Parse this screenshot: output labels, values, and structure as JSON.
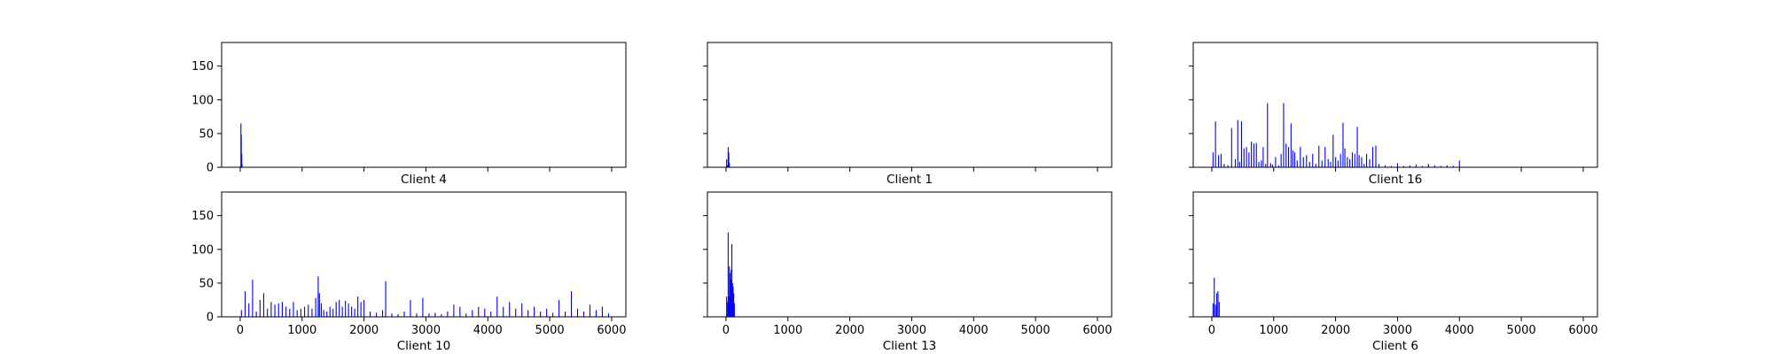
{
  "chart_data": [
    {
      "type": "bar",
      "title": "Client 4",
      "xlim": [
        -300,
        6230
      ],
      "ylim": [
        0,
        185
      ],
      "xticks": [
        0,
        1000,
        2000,
        3000,
        4000,
        5000,
        6000
      ],
      "yticks": [
        0,
        50,
        100,
        150
      ],
      "show_xtick_labels": false,
      "show_ytick_labels": true,
      "color": "#0000ff",
      "x": [
        5,
        12,
        18,
        25,
        30
      ],
      "values": [
        2,
        65,
        48,
        20,
        5
      ]
    },
    {
      "type": "bar",
      "title": "Client 1",
      "xlim": [
        -300,
        6230
      ],
      "ylim": [
        0,
        185
      ],
      "xticks": [
        0,
        1000,
        2000,
        3000,
        4000,
        5000,
        6000
      ],
      "yticks": [
        0,
        50,
        100,
        150
      ],
      "show_xtick_labels": false,
      "show_ytick_labels": false,
      "color": "#0000ff",
      "x": [
        10,
        20,
        35,
        45,
        55
      ],
      "values": [
        12,
        3,
        30,
        22,
        6
      ]
    },
    {
      "type": "bar",
      "title": "Client 16",
      "xlim": [
        -300,
        6230
      ],
      "ylim": [
        0,
        185
      ],
      "xticks": [
        0,
        1000,
        2000,
        3000,
        4000,
        5000,
        6000
      ],
      "yticks": [
        0,
        50,
        100,
        150
      ],
      "show_xtick_labels": false,
      "show_ytick_labels": false,
      "color": "#0000ff",
      "x": [
        20,
        60,
        110,
        150,
        200,
        260,
        320,
        380,
        420,
        450,
        480,
        520,
        560,
        600,
        640,
        680,
        720,
        760,
        800,
        830,
        870,
        900,
        950,
        980,
        1030,
        1080,
        1120,
        1160,
        1200,
        1240,
        1280,
        1310,
        1340,
        1380,
        1430,
        1480,
        1530,
        1580,
        1630,
        1680,
        1730,
        1780,
        1830,
        1880,
        1920,
        1960,
        2000,
        2040,
        2080,
        2120,
        2150,
        2190,
        2230,
        2270,
        2310,
        2350,
        2380,
        2420,
        2460,
        2500,
        2550,
        2600,
        2650,
        2700,
        2800,
        2900,
        3000,
        3100,
        3200,
        3300,
        3400,
        3500,
        3600,
        3700,
        3800,
        3900,
        4000
      ],
      "values": [
        22,
        68,
        18,
        20,
        5,
        3,
        58,
        12,
        70,
        8,
        68,
        28,
        30,
        22,
        38,
        35,
        36,
        8,
        10,
        30,
        5,
        95,
        6,
        4,
        15,
        3,
        20,
        95,
        35,
        30,
        65,
        25,
        22,
        10,
        30,
        15,
        18,
        8,
        20,
        5,
        32,
        10,
        30,
        12,
        8,
        48,
        15,
        10,
        20,
        66,
        28,
        15,
        12,
        22,
        20,
        60,
        18,
        15,
        5,
        20,
        12,
        30,
        32,
        5,
        3,
        2,
        6,
        2,
        3,
        4,
        2,
        5,
        3,
        2,
        3,
        2,
        10
      ]
    },
    {
      "type": "bar",
      "title": "Client 10",
      "xlim": [
        -300,
        6230
      ],
      "ylim": [
        0,
        185
      ],
      "xticks": [
        0,
        1000,
        2000,
        3000,
        4000,
        5000,
        6000
      ],
      "yticks": [
        0,
        50,
        100,
        150
      ],
      "show_xtick_labels": true,
      "show_ytick_labels": true,
      "color": "#0000ff",
      "x": [
        20,
        80,
        140,
        200,
        260,
        320,
        380,
        440,
        500,
        560,
        620,
        680,
        740,
        800,
        860,
        920,
        980,
        1040,
        1100,
        1160,
        1220,
        1260,
        1280,
        1310,
        1350,
        1400,
        1450,
        1500,
        1550,
        1600,
        1650,
        1700,
        1750,
        1800,
        1850,
        1900,
        1950,
        2000,
        2100,
        2200,
        2300,
        2350,
        2450,
        2550,
        2650,
        2750,
        2850,
        2950,
        3050,
        3150,
        3250,
        3350,
        3450,
        3550,
        3650,
        3750,
        3850,
        3950,
        4050,
        4150,
        4250,
        4350,
        4450,
        4550,
        4650,
        4750,
        4850,
        4950,
        5050,
        5150,
        5250,
        5350,
        5450,
        5550,
        5650,
        5750,
        5850,
        5950
      ],
      "values": [
        10,
        38,
        20,
        55,
        8,
        25,
        35,
        12,
        22,
        18,
        20,
        22,
        15,
        12,
        22,
        10,
        12,
        15,
        18,
        12,
        28,
        60,
        35,
        20,
        10,
        8,
        15,
        12,
        22,
        25,
        15,
        24,
        20,
        15,
        12,
        30,
        22,
        25,
        8,
        6,
        10,
        53,
        5,
        4,
        8,
        25,
        5,
        28,
        5,
        6,
        4,
        8,
        18,
        15,
        5,
        10,
        15,
        12,
        8,
        30,
        15,
        22,
        12,
        20,
        10,
        15,
        8,
        12,
        6,
        25,
        8,
        38,
        12,
        8,
        18,
        10,
        15,
        5
      ]
    },
    {
      "type": "bar",
      "title": "Client 13",
      "xlim": [
        -300,
        6230
      ],
      "ylim": [
        0,
        185
      ],
      "xticks": [
        0,
        1000,
        2000,
        3000,
        4000,
        5000,
        6000
      ],
      "yticks": [
        0,
        50,
        100,
        150
      ],
      "show_xtick_labels": true,
      "show_ytick_labels": false,
      "color": "#0000ff",
      "x": [
        10,
        25,
        35,
        45,
        55,
        65,
        75,
        85,
        95,
        105,
        115,
        125,
        135
      ],
      "values": [
        30,
        22,
        125,
        30,
        75,
        65,
        55,
        70,
        108,
        50,
        45,
        35,
        20
      ]
    },
    {
      "type": "bar",
      "title": "Client 6",
      "xlim": [
        -300,
        6230
      ],
      "ylim": [
        0,
        185
      ],
      "xticks": [
        0,
        1000,
        2000,
        3000,
        4000,
        5000,
        6000
      ],
      "yticks": [
        0,
        50,
        100,
        150
      ],
      "show_xtick_labels": true,
      "show_ytick_labels": false,
      "color": "#0000ff",
      "x": [
        20,
        40,
        60,
        80,
        100,
        120
      ],
      "values": [
        20,
        58,
        18,
        35,
        38,
        22
      ]
    }
  ]
}
